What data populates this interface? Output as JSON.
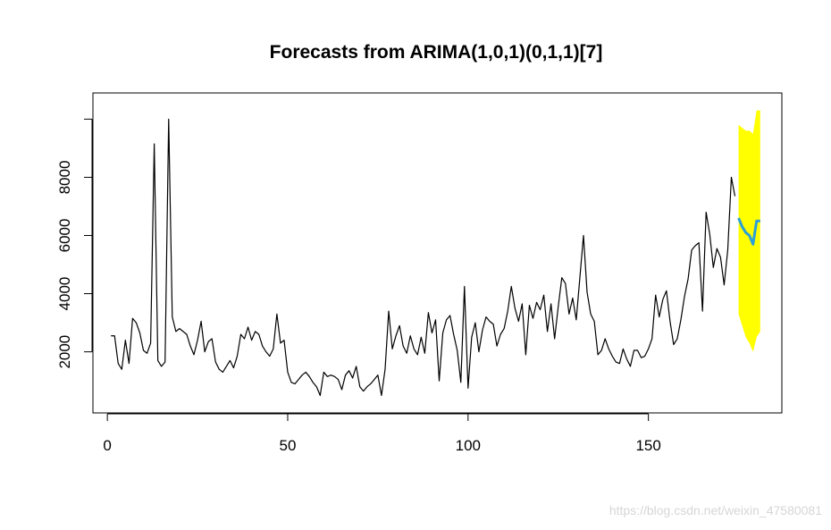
{
  "chart_data": {
    "type": "line",
    "title": "Forecasts from ARIMA(1,0,1)(0,1,1)[7]",
    "xlabel": "",
    "ylabel": "",
    "xlim": [
      -4,
      187
    ],
    "ylim": [
      -100,
      10900
    ],
    "x_ticks": [
      0,
      50,
      100,
      150
    ],
    "y_ticks": [
      2000,
      4000,
      6000,
      8000,
      10000
    ],
    "x_tick_labels": [
      "0",
      "50",
      "100",
      "150"
    ],
    "y_tick_labels": [
      "2000",
      "4000",
      "6000",
      "8000",
      ""
    ],
    "grid": false,
    "series": [
      {
        "role": "observed",
        "color": "#000000",
        "x_start": 1,
        "values": [
          2550,
          2550,
          1600,
          1400,
          2400,
          1600,
          3150,
          3000,
          2650,
          2050,
          1950,
          2300,
          9150,
          1700,
          1500,
          1650,
          10000,
          3200,
          2700,
          2800,
          2700,
          2600,
          2200,
          1900,
          2400,
          3050,
          2000,
          2350,
          2450,
          1650,
          1400,
          1300,
          1500,
          1700,
          1450,
          1850,
          2600,
          2450,
          2850,
          2400,
          2700,
          2600,
          2200,
          2000,
          1850,
          2100,
          3300,
          2300,
          2400,
          1300,
          950,
          900,
          1050,
          1200,
          1300,
          1150,
          950,
          800,
          500,
          1300,
          1150,
          1200,
          1150,
          1050,
          700,
          1200,
          1350,
          1100,
          1500,
          800,
          650,
          800,
          900,
          1050,
          1200,
          500,
          1400,
          3400,
          2100,
          2550,
          2900,
          2200,
          1950,
          2550,
          2100,
          1900,
          2500,
          1950,
          3350,
          2650,
          3100,
          1000,
          2650,
          3100,
          3250,
          2600,
          2050,
          950,
          4250,
          750,
          2500,
          3000,
          2000,
          2750,
          3200,
          3050,
          2950,
          2200,
          2600,
          2800,
          3400,
          4250,
          3500,
          3050,
          3650,
          1900,
          3600,
          3150,
          3700,
          3450,
          3950,
          2700,
          3650,
          2450,
          3550,
          4550,
          4350,
          3300,
          3850,
          3100,
          4550,
          6000,
          4050,
          3300,
          3050,
          1900,
          2050,
          2450,
          2100,
          1850,
          1650,
          1600,
          2100,
          1750,
          1500,
          2050,
          2050,
          1800,
          1850,
          2100,
          2450,
          3950,
          3200,
          3800,
          4100,
          3050,
          2250,
          2450,
          3100,
          3900,
          4500,
          5500,
          5650,
          5750,
          3400,
          6800,
          6050,
          4900,
          5550,
          5250,
          4300,
          5500,
          8000,
          7350
        ]
      },
      {
        "role": "forecast",
        "color": "#2b9fd8",
        "x": [
          175,
          176,
          177,
          178,
          179,
          180,
          181
        ],
        "values": [
          6600,
          6300,
          6100,
          6000,
          5700,
          6500,
          6500
        ],
        "upper": [
          9800,
          9700,
          9600,
          9600,
          9500,
          10300,
          10300
        ],
        "lower": [
          3300,
          2900,
          2500,
          2300,
          2000,
          2500,
          2700
        ],
        "band_color": "#ffff00"
      }
    ]
  },
  "watermark": "https://blog.csdn.net/weixin_47580081"
}
